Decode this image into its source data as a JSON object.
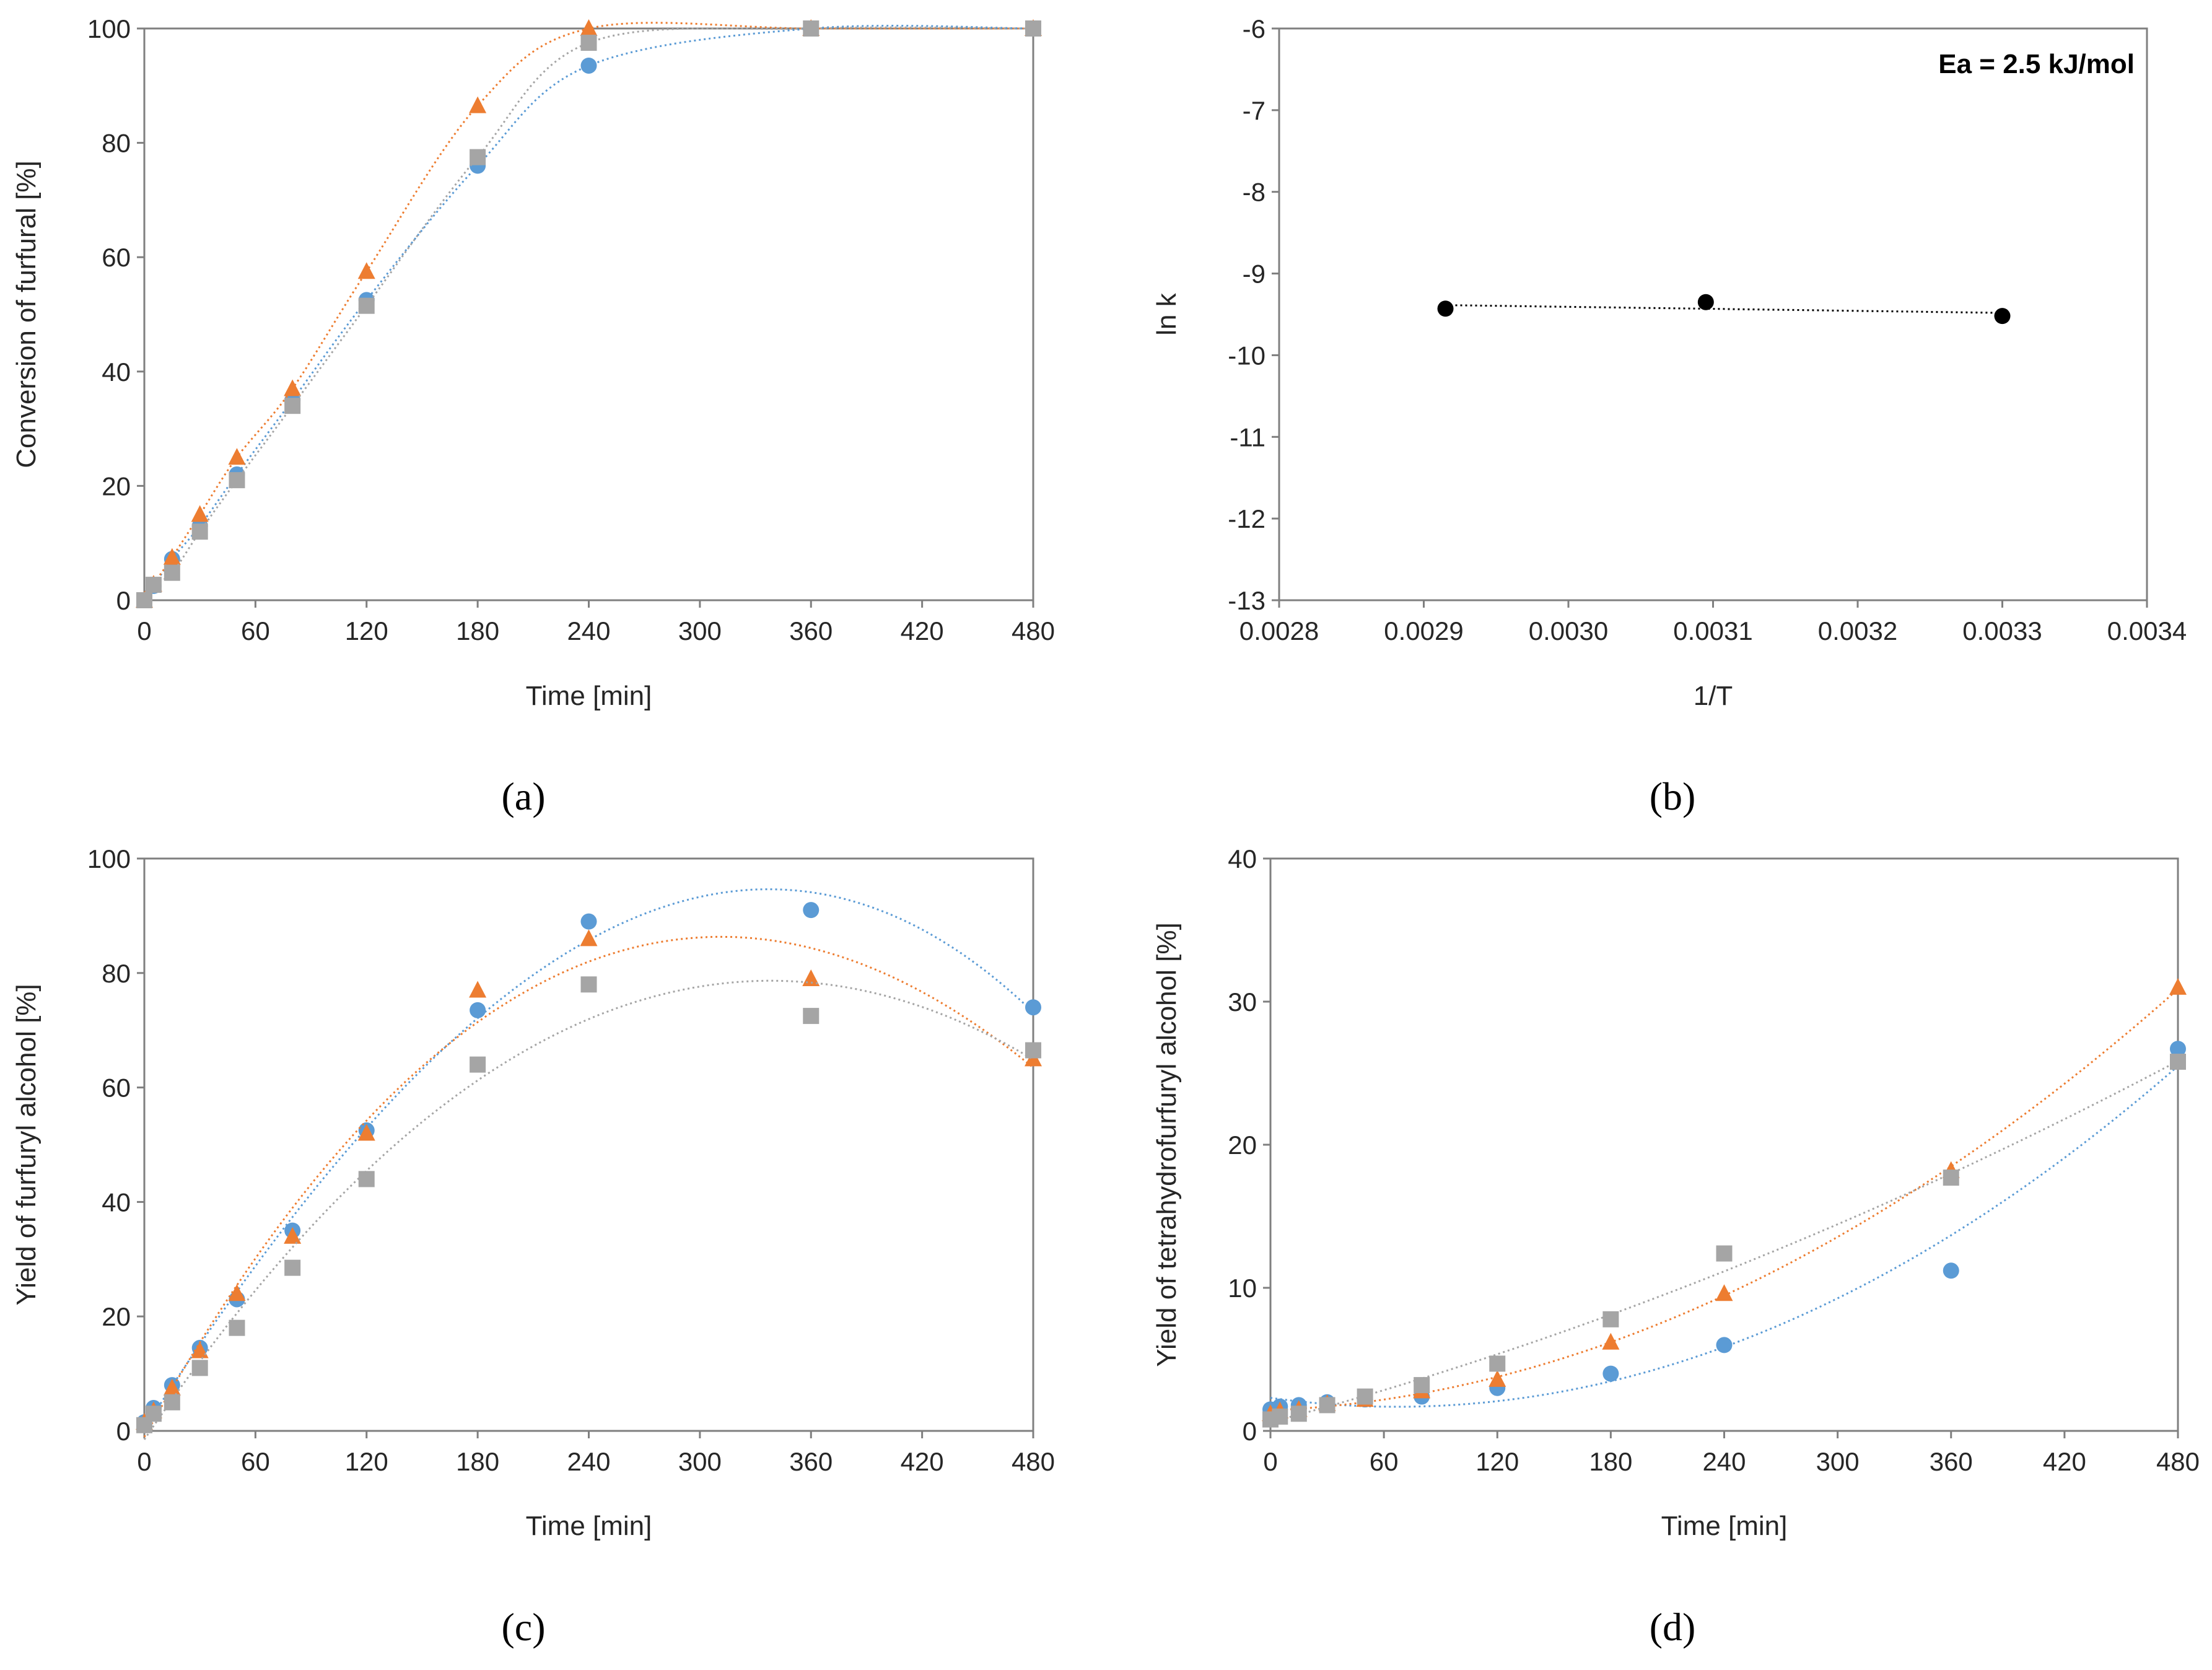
{
  "chart_data": [
    {
      "panel": "a",
      "caption": "(a)",
      "type": "scatter",
      "xlabel": "Time [min]",
      "ylabel": "Conversion of furfural [%]",
      "xlim": [
        0,
        480
      ],
      "ylim": [
        0,
        100
      ],
      "xticks": [
        0,
        60,
        120,
        180,
        240,
        300,
        360,
        420,
        480
      ],
      "yticks": [
        0,
        20,
        40,
        60,
        80,
        100
      ],
      "grid": false,
      "series": [
        {
          "name": "series-blue",
          "color": "#5b9bd5",
          "marker": "circle",
          "x": [
            0,
            5,
            15,
            30,
            50,
            80,
            120,
            180,
            240,
            360,
            480
          ],
          "y": [
            0,
            2.5,
            7.2,
            13,
            22,
            35,
            52.5,
            76,
            93.5,
            100,
            100
          ]
        },
        {
          "name": "series-orange",
          "color": "#ed7d31",
          "marker": "triangle",
          "x": [
            0,
            5,
            15,
            30,
            50,
            80,
            120,
            180,
            240,
            360,
            480
          ],
          "y": [
            0,
            2.8,
            7.5,
            15,
            25,
            37,
            57.5,
            86.5,
            100,
            100,
            100
          ]
        },
        {
          "name": "series-gray",
          "color": "#a5a5a5",
          "marker": "square",
          "x": [
            0,
            5,
            15,
            30,
            50,
            80,
            120,
            180,
            240,
            360,
            480
          ],
          "y": [
            0,
            2.7,
            4.8,
            12,
            21,
            34,
            51.5,
            77.5,
            97.5,
            100,
            100
          ]
        }
      ]
    },
    {
      "panel": "b",
      "caption": "(b)",
      "type": "scatter",
      "xlabel": "1/T",
      "ylabel": "ln k",
      "annotation": "Ea = 2.5 kJ/mol",
      "xlim": [
        0.0028,
        0.0034
      ],
      "ylim": [
        -13,
        -6
      ],
      "xticks": [
        "0.0028",
        "0.0029",
        "0.0030",
        "0.0031",
        "0.0032",
        "0.0033",
        "0.0034"
      ],
      "yticks": [
        -13,
        -12,
        -11,
        -10,
        -9,
        -8,
        -7,
        -6
      ],
      "grid": false,
      "series": [
        {
          "name": "series-black",
          "color": "#000000",
          "marker": "circle",
          "x": [
            0.002915,
            0.003095,
            0.0033
          ],
          "y": [
            -9.43,
            -9.35,
            -9.52
          ]
        }
      ]
    },
    {
      "panel": "c",
      "caption": "(c)",
      "type": "scatter",
      "xlabel": "Time [min]",
      "ylabel": "Yield of furfuryl alcohol [%]",
      "xlim": [
        0,
        480
      ],
      "ylim": [
        0,
        100
      ],
      "xticks": [
        0,
        60,
        120,
        180,
        240,
        300,
        360,
        420,
        480
      ],
      "yticks": [
        0,
        20,
        40,
        60,
        80,
        100
      ],
      "grid": false,
      "series": [
        {
          "name": "series-blue",
          "color": "#5b9bd5",
          "marker": "circle",
          "x": [
            0,
            5,
            15,
            30,
            50,
            80,
            120,
            180,
            240,
            360,
            480
          ],
          "y": [
            1.5,
            4,
            8,
            14.5,
            23,
            35,
            52.5,
            73.5,
            89,
            91,
            74
          ]
        },
        {
          "name": "series-orange",
          "color": "#ed7d31",
          "marker": "triangle",
          "x": [
            0,
            5,
            15,
            30,
            50,
            80,
            120,
            180,
            240,
            360,
            480
          ],
          "y": [
            1.5,
            3.5,
            7.5,
            14,
            24,
            34,
            52,
            77,
            86,
            79,
            65
          ]
        },
        {
          "name": "series-gray",
          "color": "#a5a5a5",
          "marker": "square",
          "x": [
            0,
            5,
            15,
            30,
            50,
            80,
            120,
            180,
            240,
            360,
            480
          ],
          "y": [
            1,
            3,
            5,
            11,
            18,
            28.5,
            44,
            64,
            78,
            72.5,
            66.5
          ]
        }
      ]
    },
    {
      "panel": "d",
      "caption": "(d)",
      "type": "scatter",
      "xlabel": "Time [min]",
      "ylabel": "Yield of tetrahydrofurfuryl alcohol [%]",
      "xlim": [
        0,
        480
      ],
      "ylim": [
        0,
        40
      ],
      "xticks": [
        0,
        60,
        120,
        180,
        240,
        300,
        360,
        420,
        480
      ],
      "yticks": [
        0,
        10,
        20,
        30,
        40
      ],
      "grid": false,
      "series": [
        {
          "name": "series-blue",
          "color": "#5b9bd5",
          "marker": "circle",
          "x": [
            0,
            5,
            15,
            30,
            50,
            80,
            120,
            180,
            240,
            360,
            480
          ],
          "y": [
            1.5,
            1.7,
            1.8,
            2,
            2.2,
            2.4,
            3,
            4,
            6,
            11.2,
            26.7
          ]
        },
        {
          "name": "series-orange",
          "color": "#ed7d31",
          "marker": "triangle",
          "x": [
            0,
            5,
            15,
            30,
            50,
            80,
            120,
            180,
            240,
            360,
            480
          ],
          "y": [
            1.2,
            1.4,
            1.5,
            1.9,
            2.2,
            2.8,
            3.6,
            6.2,
            9.6,
            18.2,
            31
          ]
        },
        {
          "name": "series-gray",
          "color": "#a5a5a5",
          "marker": "square",
          "x": [
            0,
            5,
            15,
            30,
            50,
            80,
            120,
            180,
            240,
            360,
            480
          ],
          "y": [
            0.8,
            1,
            1.2,
            1.8,
            2.4,
            3.2,
            4.7,
            7.8,
            12.4,
            17.7,
            25.8
          ]
        }
      ]
    }
  ]
}
